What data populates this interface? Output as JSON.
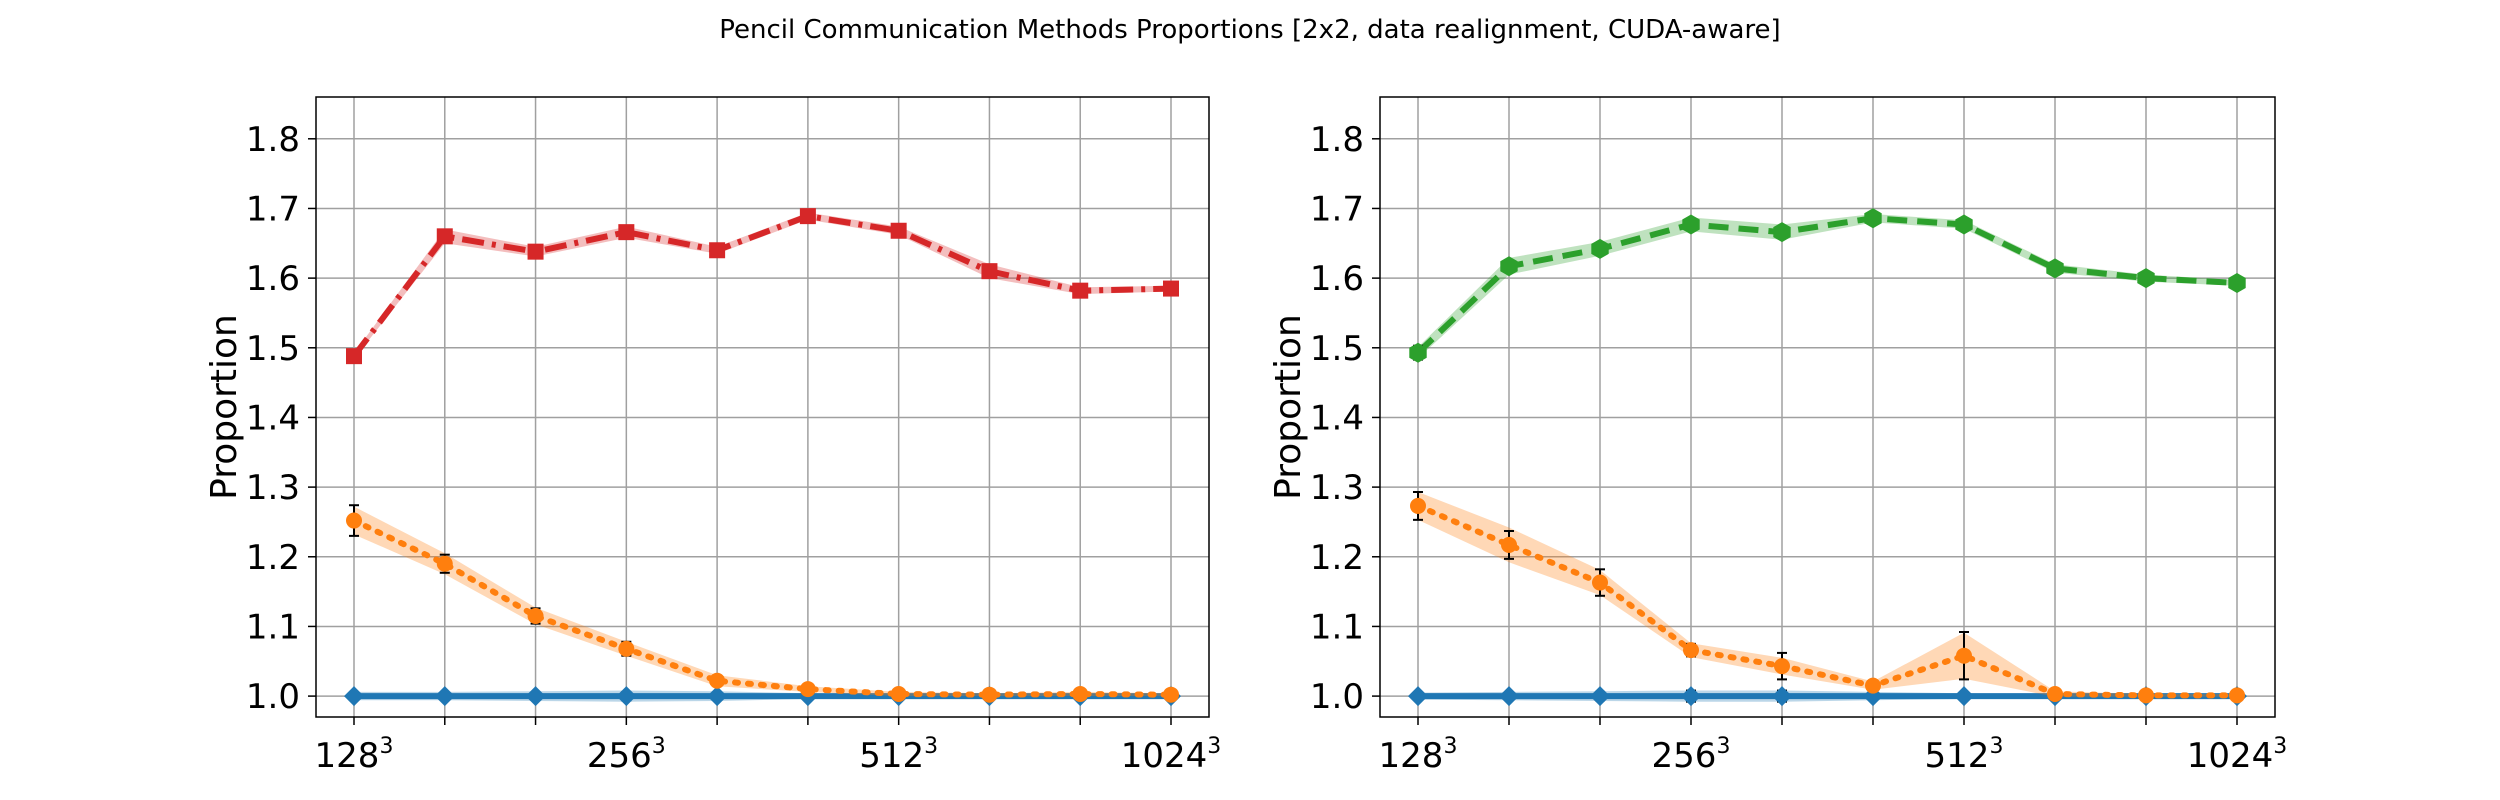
{
  "figure": {
    "title": "Pencil Communication Methods Proportions [2x2, data realignment, CUDA-aware]"
  },
  "chart_data": [
    {
      "type": "line",
      "ylabel": "Proportion",
      "xlabel": "",
      "ylim": [
        0.97,
        1.86
      ],
      "y_ticks": [
        1.0,
        1.1,
        1.2,
        1.3,
        1.4,
        1.5,
        1.6,
        1.7,
        1.8
      ],
      "y_tick_labels": [
        "1.0",
        "1.1",
        "1.2",
        "1.3",
        "1.4",
        "1.5",
        "1.6",
        "1.7",
        "1.8"
      ],
      "x_tick_labels": [
        {
          "index": 0,
          "base": "128",
          "exp": "3"
        },
        {
          "index": 3,
          "base": "256",
          "exp": "3"
        },
        {
          "index": 6,
          "base": "512",
          "exp": "3"
        },
        {
          "index": 9,
          "base": "1024",
          "exp": "3"
        }
      ],
      "grid": true,
      "n_points": 10,
      "series": [
        {
          "color": "#1f77b4",
          "line": "solid",
          "marker": "diamond",
          "values": [
            1.0,
            1.0,
            1.0,
            1.0,
            1.0,
            1.0,
            1.0,
            1.0,
            1.0,
            1.0
          ],
          "band": [
            0.006,
            0.006,
            0.007,
            0.008,
            0.007,
            0.004,
            0.002,
            0.002,
            0.002,
            0.002
          ],
          "err": [
            0.004,
            0.004,
            0.005,
            0.006,
            0.005,
            0.002,
            0.002,
            0.002,
            0.002,
            0.002
          ]
        },
        {
          "color": "#ff7f0e",
          "line": "dotted",
          "marker": "circle",
          "values": [
            1.252,
            1.19,
            1.115,
            1.068,
            1.022,
            1.01,
            1.003,
            1.002,
            1.003,
            1.002
          ],
          "band": [
            0.02,
            0.015,
            0.012,
            0.01,
            0.008,
            0.004,
            0.003,
            0.002,
            0.003,
            0.002
          ],
          "err": [
            0.022,
            0.013,
            0.011,
            0.01,
            0.004,
            0.003,
            0.002,
            0.002,
            0.002,
            0.002
          ]
        },
        {
          "color": "#d62728",
          "line": "dashdot",
          "marker": "square",
          "values": [
            1.488,
            1.66,
            1.638,
            1.666,
            1.64,
            1.689,
            1.668,
            1.61,
            1.582,
            1.585
          ],
          "band": [
            0.004,
            0.01,
            0.007,
            0.008,
            0.005,
            0.005,
            0.006,
            0.01,
            0.005,
            0.004
          ],
          "err": [
            0.003,
            0.004,
            0.004,
            0.005,
            0.004,
            0.003,
            0.004,
            0.004,
            0.003,
            0.003
          ]
        }
      ]
    },
    {
      "type": "line",
      "ylabel": "Proportion",
      "xlabel": "",
      "ylim": [
        0.97,
        1.86
      ],
      "y_ticks": [
        1.0,
        1.1,
        1.2,
        1.3,
        1.4,
        1.5,
        1.6,
        1.7,
        1.8
      ],
      "y_tick_labels": [
        "1.0",
        "1.1",
        "1.2",
        "1.3",
        "1.4",
        "1.5",
        "1.6",
        "1.7",
        "1.8"
      ],
      "x_tick_labels": [
        {
          "index": 0,
          "base": "128",
          "exp": "3"
        },
        {
          "index": 3,
          "base": "256",
          "exp": "3"
        },
        {
          "index": 6,
          "base": "512",
          "exp": "3"
        },
        {
          "index": 9,
          "base": "1024",
          "exp": "3"
        }
      ],
      "grid": true,
      "n_points": 10,
      "series": [
        {
          "color": "#1f77b4",
          "line": "solid",
          "marker": "diamond",
          "values": [
            1.0,
            1.0,
            1.0,
            1.0,
            1.0,
            1.0,
            1.0,
            1.0,
            1.0,
            1.0
          ],
          "band": [
            0.005,
            0.006,
            0.007,
            0.008,
            0.008,
            0.006,
            0.004,
            0.003,
            0.003,
            0.003
          ],
          "err": [
            0.004,
            0.005,
            0.006,
            0.008,
            0.008,
            0.005,
            0.003,
            0.002,
            0.002,
            0.002
          ]
        },
        {
          "color": "#ff7f0e",
          "line": "dotted",
          "marker": "circle",
          "values": [
            1.273,
            1.217,
            1.163,
            1.066,
            1.043,
            1.015,
            1.058,
            1.003,
            1.001,
            1.001
          ],
          "band": [
            0.02,
            0.025,
            0.018,
            0.01,
            0.012,
            0.006,
            0.033,
            0.004,
            0.002,
            0.002
          ],
          "err": [
            0.02,
            0.02,
            0.019,
            0.009,
            0.019,
            0.007,
            0.034,
            0.003,
            0.002,
            0.002
          ]
        },
        {
          "color": "#2ca02c",
          "line": "dashed",
          "marker": "hexagon",
          "values": [
            1.493,
            1.617,
            1.642,
            1.677,
            1.666,
            1.686,
            1.677,
            1.614,
            1.6,
            1.593
          ],
          "band": [
            0.008,
            0.012,
            0.01,
            0.01,
            0.011,
            0.006,
            0.006,
            0.006,
            0.005,
            0.004
          ],
          "err": [
            0.01,
            0.008,
            0.005,
            0.005,
            0.005,
            0.004,
            0.004,
            0.003,
            0.003,
            0.003
          ]
        }
      ]
    }
  ]
}
